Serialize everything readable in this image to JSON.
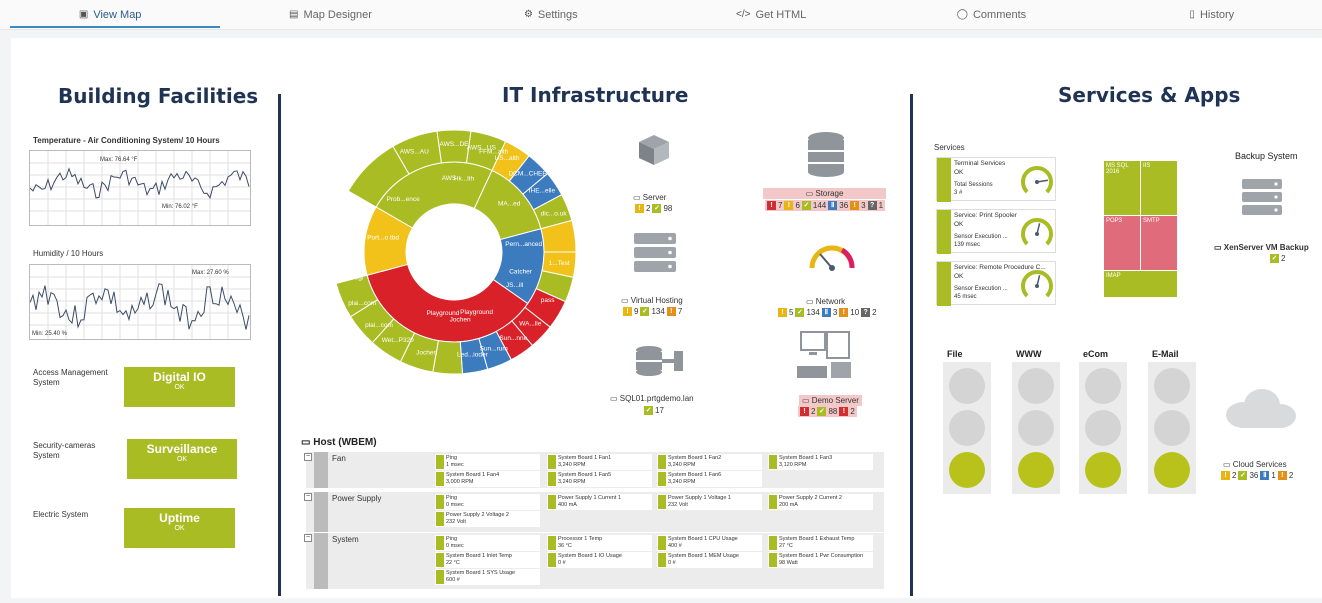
{
  "tabs": [
    {
      "label": "View Map",
      "icon": "map-icon",
      "active": true
    },
    {
      "label": "Map Designer",
      "icon": "designer-icon",
      "active": false
    },
    {
      "label": "Settings",
      "icon": "gear-icon",
      "active": false
    },
    {
      "label": "Get HTML",
      "icon": "code-icon",
      "active": false
    },
    {
      "label": "Comments",
      "icon": "comment-icon",
      "active": false
    },
    {
      "label": "History",
      "icon": "history-icon",
      "active": false
    }
  ],
  "building": {
    "title": "Building Facilities",
    "temp_chart": {
      "title": "Temperature - Air Conditioning System/ 10 Hours",
      "max_label": "Max: 76.64 °F",
      "min_label": "Min: 76.02 °F"
    },
    "humidity_chart": {
      "title": "Humidity / 10 Hours",
      "max_label": "Max: 27.60 %",
      "min_label": "Min: 25.40 %"
    },
    "systems": [
      {
        "label": "Access Management System",
        "box_title": "Digital IO",
        "box_status": "OK"
      },
      {
        "label": "Security-cameras System",
        "box_title": "Surveillance",
        "box_status": "OK"
      },
      {
        "label": "Electric System",
        "box_title": "Uptime",
        "box_status": "OK"
      }
    ]
  },
  "it": {
    "title": "IT Infrastructure",
    "sunburst_labels": [
      "Prob...ence",
      "AWS...AU",
      "AWS...DE",
      "AWS...US",
      "AWS",
      "FFM...alth",
      "US...alth",
      "Hk...lth",
      "DCM...CHEE",
      "MA...ed",
      "IHE...elle",
      "dic...o.uk",
      "Port...o tbd",
      "Pern...anced",
      "Playground",
      "go...regi",
      "Dev...e 1",
      "plai...com",
      "plai...com",
      "Wet...P320",
      "Jochen",
      "Jochen",
      "Led...ioder",
      "Sun...rum",
      "Sun...nne",
      "WA...lle",
      "pass",
      "Catcher",
      "JS...ill",
      "1...Test",
      "Playground"
    ],
    "devices": [
      {
        "name": "Server",
        "icon": "cube-icon",
        "counts": [
          {
            "c": "y",
            "v": "2"
          },
          {
            "c": "g",
            "v": "98"
          }
        ]
      },
      {
        "name": "Storage",
        "icon": "database-icon",
        "alert": true,
        "counts": [
          {
            "c": "r",
            "v": "7"
          },
          {
            "c": "y",
            "v": "6"
          },
          {
            "c": "g",
            "v": "144"
          },
          {
            "c": "b",
            "v": "36"
          },
          {
            "c": "o",
            "v": "3"
          },
          {
            "c": "d",
            "v": "1"
          }
        ]
      },
      {
        "name": "Virtual Hosting",
        "icon": "rack-icon",
        "counts": [
          {
            "c": "y",
            "v": "9"
          },
          {
            "c": "g",
            "v": "134"
          },
          {
            "c": "o",
            "v": "7"
          }
        ]
      },
      {
        "name": "Network",
        "icon": "gauge-icon",
        "counts": [
          {
            "c": "y",
            "v": "5"
          },
          {
            "c": "g",
            "v": "134"
          },
          {
            "c": "b",
            "v": "3"
          },
          {
            "c": "o",
            "v": "10"
          },
          {
            "c": "d",
            "v": "2"
          }
        ]
      },
      {
        "name": "SQL01.prtgdemo.lan",
        "icon": "db-server-icon",
        "counts": [
          {
            "c": "g",
            "v": "17"
          }
        ]
      },
      {
        "name": "Demo Server",
        "icon": "workstation-icon",
        "alert": true,
        "counts": [
          {
            "c": "r",
            "v": "2"
          },
          {
            "c": "g",
            "v": "88"
          },
          {
            "c": "r",
            "v": "2"
          }
        ]
      }
    ],
    "wbem": {
      "title": "Host (WBEM)",
      "groups": [
        {
          "name": "Fan",
          "sensors": [
            {
              "n": "Ping",
              "v": "1 msec"
            },
            {
              "n": "System Board 1 Fan1",
              "v": "3,240 RPM"
            },
            {
              "n": "System Board 1 Fan2",
              "v": "3,240 RPM"
            },
            {
              "n": "System Board 1 Fan3",
              "v": "3,120 RPM"
            },
            {
              "n": "System Board 1 Fan4",
              "v": "3,000 RPM"
            },
            {
              "n": "System Board 1 Fan5",
              "v": "3,240 RPM"
            },
            {
              "n": "System Board 1 Fan6",
              "v": "3,240 RPM"
            }
          ]
        },
        {
          "name": "Power Supply",
          "sensors": [
            {
              "n": "Ping",
              "v": "0 msec"
            },
            {
              "n": "Power Supply 1 Current 1",
              "v": "400 mA"
            },
            {
              "n": "Power Supply 1 Voltage 1",
              "v": "232 Volt"
            },
            {
              "n": "Power Supply 2 Current 2",
              "v": "200 mA"
            },
            {
              "n": "Power Supply 2 Voltage 2",
              "v": "232 Volt"
            }
          ]
        },
        {
          "name": "System",
          "sensors": [
            {
              "n": "Ping",
              "v": "0 msec"
            },
            {
              "n": "Processor 1 Temp",
              "v": "36 °C"
            },
            {
              "n": "System Board 1 CPU Usage",
              "v": "400 #"
            },
            {
              "n": "System Board 1 Exhaust Temp",
              "v": "27 °C"
            },
            {
              "n": "System Board 1 Inlet Temp",
              "v": "22 °C"
            },
            {
              "n": "System Board 1 IO Usage",
              "v": "0 #"
            },
            {
              "n": "System Board 1 MEM Usage",
              "v": "0 #"
            },
            {
              "n": "System Board 1 Pwr Consumption",
              "v": "98 Watt"
            },
            {
              "n": "System Board 1 SYS Usage",
              "v": "600 #"
            }
          ]
        }
      ]
    }
  },
  "services": {
    "title": "Services & Apps",
    "services_label": "Services",
    "items": [
      {
        "title": "Terminal Services",
        "status": "OK",
        "metric": "Total Sessions",
        "value": "3 #",
        "gauge": 0.8
      },
      {
        "title": "Service: Print Spooler",
        "status": "OK",
        "metric": "Sensor Execution ...",
        "value": "139 msec",
        "gauge": 0.55
      },
      {
        "title": "Service: Remote Procedure C...",
        "status": "OK",
        "metric": "Sensor Execution ...",
        "value": "45 msec",
        "gauge": 0.55
      }
    ],
    "tiles": [
      {
        "label": "MS SQL 2016",
        "color": "#a9bc23"
      },
      {
        "label": "IIS",
        "color": "#a9bc23"
      },
      {
        "label": "POP3",
        "color": "#e06b7a"
      },
      {
        "label": "SMTP",
        "color": "#e06b7a"
      },
      {
        "label": "IMAP",
        "color": "#a9bc23"
      }
    ],
    "backup": {
      "title": "Backup System",
      "label": "XenServer VM Backup",
      "count": "2"
    },
    "lights": [
      {
        "label": "File"
      },
      {
        "label": "WWW"
      },
      {
        "label": "eCom"
      },
      {
        "label": "E-Mail"
      }
    ],
    "cloud": {
      "label": "Cloud Services",
      "counts": [
        {
          "c": "y",
          "v": "2"
        },
        {
          "c": "g",
          "v": "36"
        },
        {
          "c": "b",
          "v": "1"
        },
        {
          "c": "o",
          "v": "2"
        }
      ]
    }
  }
}
